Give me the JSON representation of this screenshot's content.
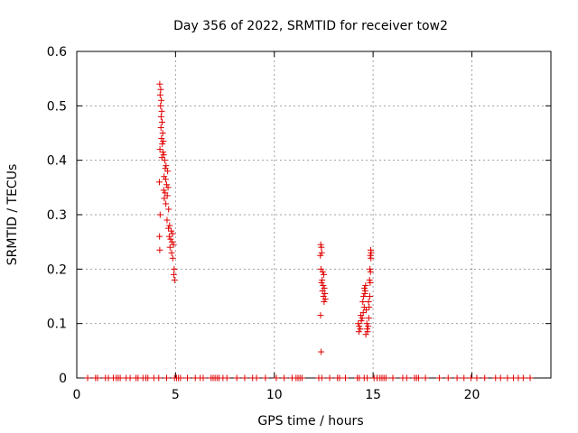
{
  "chart_data": {
    "type": "scatter",
    "title": "Day 356 of 2022, SRMTID for receiver tow2",
    "xlabel": "GPS time / hours",
    "ylabel": "SRMTID / TECUs",
    "xlim": [
      0,
      24
    ],
    "ylim": [
      0,
      0.6
    ],
    "xticks": [
      0,
      5,
      10,
      15,
      20
    ],
    "yticks": [
      0,
      0.1,
      0.2,
      0.3,
      0.4,
      0.5,
      0.6
    ],
    "xtick_labels": [
      "0",
      "5",
      "10",
      "15",
      "20"
    ],
    "ytick_labels": [
      "0",
      "0.1",
      "0.2",
      "0.3",
      "0.4",
      "0.5",
      "0.6"
    ],
    "grid": true,
    "marker": "+",
    "color": "#e00000",
    "series": [
      {
        "name": "tow2",
        "points": [
          [
            4.2,
            0.54
          ],
          [
            4.25,
            0.53
          ],
          [
            4.22,
            0.52
          ],
          [
            4.28,
            0.51
          ],
          [
            4.24,
            0.5
          ],
          [
            4.3,
            0.49
          ],
          [
            4.27,
            0.48
          ],
          [
            4.32,
            0.47
          ],
          [
            4.26,
            0.46
          ],
          [
            4.35,
            0.45
          ],
          [
            4.29,
            0.44
          ],
          [
            4.38,
            0.435
          ],
          [
            4.33,
            0.43
          ],
          [
            4.21,
            0.42
          ],
          [
            4.36,
            0.415
          ],
          [
            4.4,
            0.41
          ],
          [
            4.31,
            0.405
          ],
          [
            4.45,
            0.4
          ],
          [
            4.52,
            0.39
          ],
          [
            4.48,
            0.385
          ],
          [
            4.6,
            0.38
          ],
          [
            4.42,
            0.37
          ],
          [
            4.5,
            0.365
          ],
          [
            4.18,
            0.36
          ],
          [
            4.55,
            0.355
          ],
          [
            4.62,
            0.35
          ],
          [
            4.4,
            0.345
          ],
          [
            4.47,
            0.34
          ],
          [
            4.58,
            0.335
          ],
          [
            4.43,
            0.33
          ],
          [
            4.51,
            0.32
          ],
          [
            4.65,
            0.31
          ],
          [
            4.22,
            0.3
          ],
          [
            4.57,
            0.29
          ],
          [
            4.7,
            0.28
          ],
          [
            4.64,
            0.275
          ],
          [
            4.78,
            0.27
          ],
          [
            4.85,
            0.265
          ],
          [
            4.68,
            0.26
          ],
          [
            4.75,
            0.255
          ],
          [
            4.19,
            0.26
          ],
          [
            4.82,
            0.25
          ],
          [
            4.9,
            0.245
          ],
          [
            4.72,
            0.24
          ],
          [
            4.2,
            0.235
          ],
          [
            4.8,
            0.23
          ],
          [
            4.86,
            0.22
          ],
          [
            4.93,
            0.2
          ],
          [
            4.91,
            0.19
          ],
          [
            4.95,
            0.18
          ],
          [
            12.35,
            0.245
          ],
          [
            12.38,
            0.24
          ],
          [
            12.4,
            0.23
          ],
          [
            12.33,
            0.225
          ],
          [
            12.36,
            0.2
          ],
          [
            12.45,
            0.195
          ],
          [
            12.5,
            0.19
          ],
          [
            12.42,
            0.18
          ],
          [
            12.39,
            0.175
          ],
          [
            12.47,
            0.17
          ],
          [
            12.53,
            0.165
          ],
          [
            12.44,
            0.16
          ],
          [
            12.56,
            0.155
          ],
          [
            12.49,
            0.15
          ],
          [
            12.58,
            0.145
          ],
          [
            12.52,
            0.14
          ],
          [
            12.34,
            0.115
          ],
          [
            12.37,
            0.048
          ],
          [
            14.25,
            0.1
          ],
          [
            14.3,
            0.095
          ],
          [
            14.35,
            0.09
          ],
          [
            14.28,
            0.085
          ],
          [
            14.4,
            0.105
          ],
          [
            14.45,
            0.11
          ],
          [
            14.38,
            0.115
          ],
          [
            14.5,
            0.12
          ],
          [
            14.55,
            0.13
          ],
          [
            14.48,
            0.14
          ],
          [
            14.52,
            0.15
          ],
          [
            14.58,
            0.155
          ],
          [
            14.6,
            0.16
          ],
          [
            14.56,
            0.165
          ],
          [
            14.62,
            0.17
          ],
          [
            14.65,
            0.125
          ],
          [
            14.68,
            0.1
          ],
          [
            14.7,
            0.09
          ],
          [
            14.72,
            0.085
          ],
          [
            14.63,
            0.08
          ],
          [
            14.75,
            0.095
          ],
          [
            14.78,
            0.11
          ],
          [
            14.8,
            0.13
          ],
          [
            14.83,
            0.15
          ],
          [
            14.77,
            0.14
          ],
          [
            14.85,
            0.175
          ],
          [
            14.82,
            0.18
          ],
          [
            14.87,
            0.195
          ],
          [
            14.84,
            0.2
          ],
          [
            14.89,
            0.22
          ],
          [
            14.86,
            0.225
          ],
          [
            14.9,
            0.23
          ],
          [
            14.88,
            0.235
          ],
          [
            0.55,
            0
          ],
          [
            0.95,
            0
          ],
          [
            1.05,
            0
          ],
          [
            1.45,
            0
          ],
          [
            1.6,
            0
          ],
          [
            1.85,
            0
          ],
          [
            2.0,
            0
          ],
          [
            2.1,
            0
          ],
          [
            2.2,
            0
          ],
          [
            2.5,
            0
          ],
          [
            2.7,
            0
          ],
          [
            3.0,
            0
          ],
          [
            3.1,
            0
          ],
          [
            3.35,
            0
          ],
          [
            3.5,
            0
          ],
          [
            3.6,
            0
          ],
          [
            3.9,
            0
          ],
          [
            4.15,
            0
          ],
          [
            4.55,
            0
          ],
          [
            4.95,
            0
          ],
          [
            5.05,
            0
          ],
          [
            5.15,
            0
          ],
          [
            5.25,
            0
          ],
          [
            5.6,
            0
          ],
          [
            6.0,
            0
          ],
          [
            6.25,
            0
          ],
          [
            6.4,
            0
          ],
          [
            6.8,
            0
          ],
          [
            6.9,
            0
          ],
          [
            7.0,
            0
          ],
          [
            7.1,
            0
          ],
          [
            7.2,
            0
          ],
          [
            7.4,
            0
          ],
          [
            7.6,
            0
          ],
          [
            8.1,
            0
          ],
          [
            8.5,
            0
          ],
          [
            8.9,
            0
          ],
          [
            9.1,
            0
          ],
          [
            9.55,
            0
          ],
          [
            10.1,
            0
          ],
          [
            10.5,
            0
          ],
          [
            10.9,
            0
          ],
          [
            11.1,
            0
          ],
          [
            11.2,
            0
          ],
          [
            11.3,
            0
          ],
          [
            11.4,
            0
          ],
          [
            12.25,
            0
          ],
          [
            12.4,
            0
          ],
          [
            12.8,
            0
          ],
          [
            13.2,
            0
          ],
          [
            13.3,
            0
          ],
          [
            13.6,
            0
          ],
          [
            14.2,
            0
          ],
          [
            14.3,
            0
          ],
          [
            14.55,
            0
          ],
          [
            14.7,
            0
          ],
          [
            15.05,
            0
          ],
          [
            15.2,
            0
          ],
          [
            15.35,
            0
          ],
          [
            15.45,
            0
          ],
          [
            15.55,
            0
          ],
          [
            15.65,
            0
          ],
          [
            16.0,
            0
          ],
          [
            16.5,
            0
          ],
          [
            16.7,
            0
          ],
          [
            17.1,
            0
          ],
          [
            17.2,
            0
          ],
          [
            17.3,
            0
          ],
          [
            17.65,
            0
          ],
          [
            18.35,
            0
          ],
          [
            18.8,
            0
          ],
          [
            19.25,
            0
          ],
          [
            19.6,
            0
          ],
          [
            19.95,
            0
          ],
          [
            20.25,
            0
          ],
          [
            20.65,
            0
          ],
          [
            21.2,
            0
          ],
          [
            21.45,
            0
          ],
          [
            21.8,
            0
          ],
          [
            22.1,
            0
          ],
          [
            22.35,
            0
          ],
          [
            22.6,
            0
          ],
          [
            22.95,
            0
          ]
        ]
      }
    ]
  }
}
